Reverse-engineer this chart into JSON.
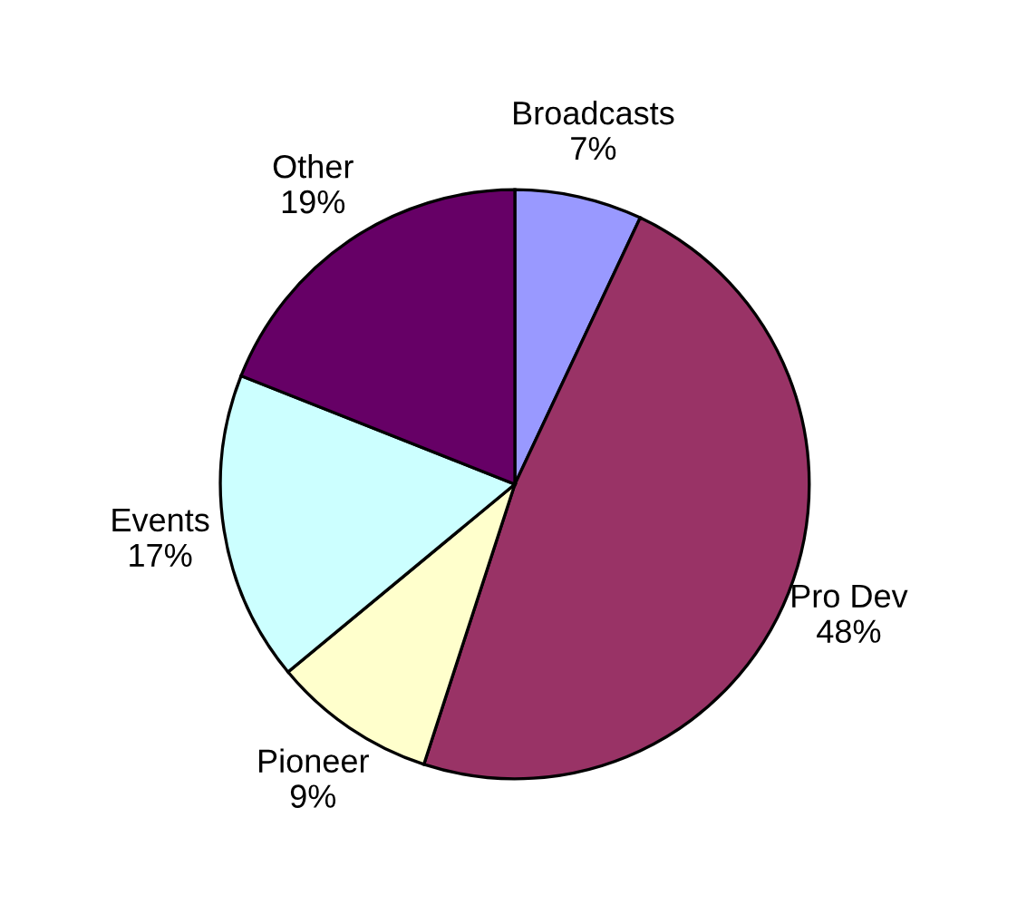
{
  "chart_data": {
    "type": "pie",
    "categories": [
      "Broadcasts",
      "Pro Dev",
      "Pioneer",
      "Events",
      "Other"
    ],
    "values": [
      7,
      48,
      9,
      17,
      19
    ],
    "colors": [
      "#9999ff",
      "#993366",
      "#ffffcc",
      "#ccffff",
      "#660066"
    ],
    "value_labels": [
      "7%",
      "48%",
      "9%",
      "17%",
      "19%"
    ],
    "legend": false
  }
}
